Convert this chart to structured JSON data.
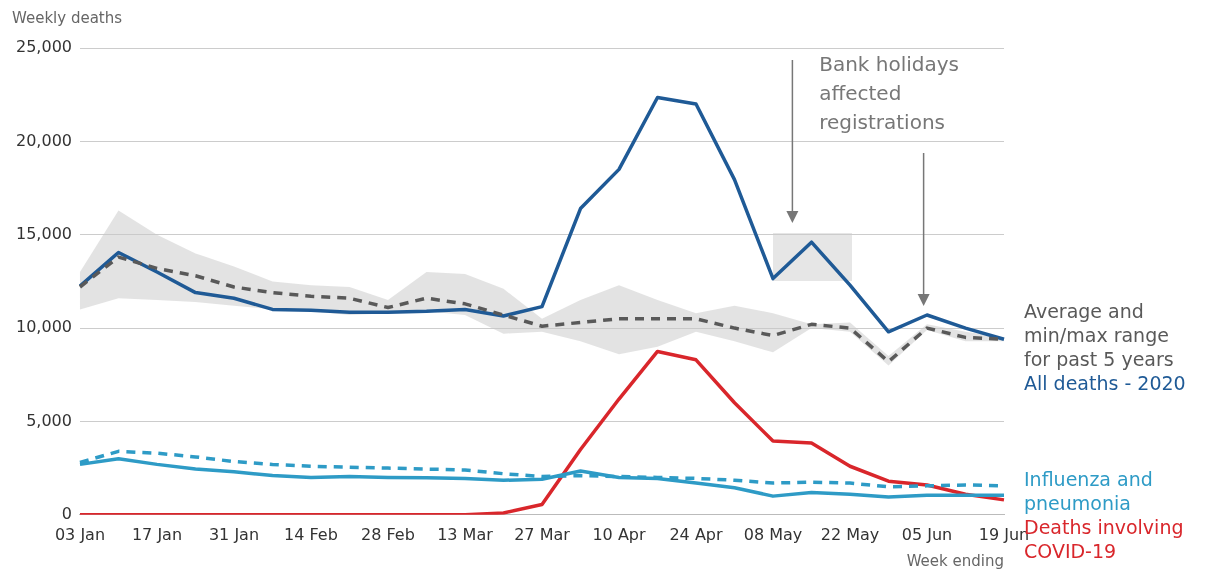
{
  "chart_data": {
    "type": "line",
    "ylabel": "Weekly deaths",
    "xlabel": "Week ending",
    "categories": [
      "03 Jan",
      null,
      "17 Jan",
      null,
      "31 Jan",
      null,
      "14 Feb",
      null,
      "28 Feb",
      null,
      "13 Mar",
      null,
      "27 Mar",
      null,
      "10 Apr",
      null,
      "24 Apr",
      null,
      "08 May",
      null,
      "22 May",
      null,
      "05 Jun",
      null,
      "19 Jun"
    ],
    "series": [
      {
        "name": "Average and min/max range for past 5 years",
        "color": "#595959",
        "line_style": "dashed",
        "values": [
          12200,
          13800,
          13200,
          12800,
          12200,
          11900,
          11700,
          11600,
          11100,
          11600,
          11300,
          10700,
          10100,
          10300,
          10500,
          10500,
          10500,
          10000,
          9600,
          10200,
          10000,
          8200,
          10000,
          9500,
          9400
        ],
        "lower": [
          11000,
          11600,
          11500,
          11400,
          11200,
          11000,
          10900,
          10700,
          10800,
          10900,
          10700,
          9700,
          9800,
          9300,
          8600,
          9000,
          9800,
          9300,
          8700,
          10000,
          9800,
          8000,
          9900,
          9300,
          9300
        ],
        "upper": [
          13000,
          16300,
          15000,
          14000,
          13300,
          12500,
          12300,
          12200,
          11500,
          13000,
          12900,
          12100,
          10500,
          11500,
          12300,
          11500,
          10800,
          11200,
          10800,
          10200,
          10300,
          8500,
          10200,
          9800,
          9500
        ]
      },
      {
        "name": "All deaths - 2020",
        "color": "#1f5a96",
        "line_style": "solid",
        "values": [
          12250,
          14050,
          13000,
          11900,
          11600,
          11000,
          10950,
          10850,
          10850,
          10900,
          11000,
          10650,
          11150,
          16400,
          18500,
          22350,
          22000,
          17950,
          12650,
          14600,
          12300,
          9800,
          10700,
          10000,
          9400
        ]
      },
      {
        "color": "#2e9bc6",
        "line_style": "dashed",
        "values": [
          2800,
          3400,
          3300,
          3100,
          2850,
          2700,
          2600,
          2550,
          2500,
          2450,
          2400,
          2200,
          2050,
          2100,
          2050,
          2000,
          1950,
          1850,
          1700,
          1750,
          1700,
          1500,
          1550,
          1600,
          1550
        ]
      },
      {
        "name": "Influenza and pneumonia",
        "color": "#2e9bc6",
        "line_style": "solid",
        "values": [
          2700,
          3000,
          2700,
          2450,
          2300,
          2100,
          2000,
          2050,
          2000,
          1980,
          1950,
          1850,
          1900,
          2350,
          2000,
          1950,
          1700,
          1450,
          1000,
          1200,
          1100,
          950,
          1050,
          1050,
          1050
        ]
      },
      {
        "name": "Deaths involving COVID-19",
        "color": "#d9262b",
        "line_style": "solid",
        "values": [
          0,
          0,
          0,
          0,
          0,
          0,
          0,
          0,
          0,
          0,
          0,
          100,
          550,
          3500,
          6200,
          8750,
          8300,
          6000,
          3950,
          3850,
          2600,
          1800,
          1600,
          1100,
          800
        ]
      }
    ],
    "ylim": [
      0,
      25000
    ],
    "yticks": [
      0,
      {
        "value": 5000,
        "label": "5,000"
      },
      {
        "value": 10000,
        "label": "10,000"
      },
      {
        "value": 15000,
        "label": "15,000"
      },
      {
        "value": 20000,
        "label": "20,000"
      },
      {
        "value": 25000,
        "label": "25,000"
      }
    ],
    "grid": "y",
    "legend": false,
    "marker": "none",
    "annotations": [
      "Bank holidays affected registrations"
    ]
  }
}
